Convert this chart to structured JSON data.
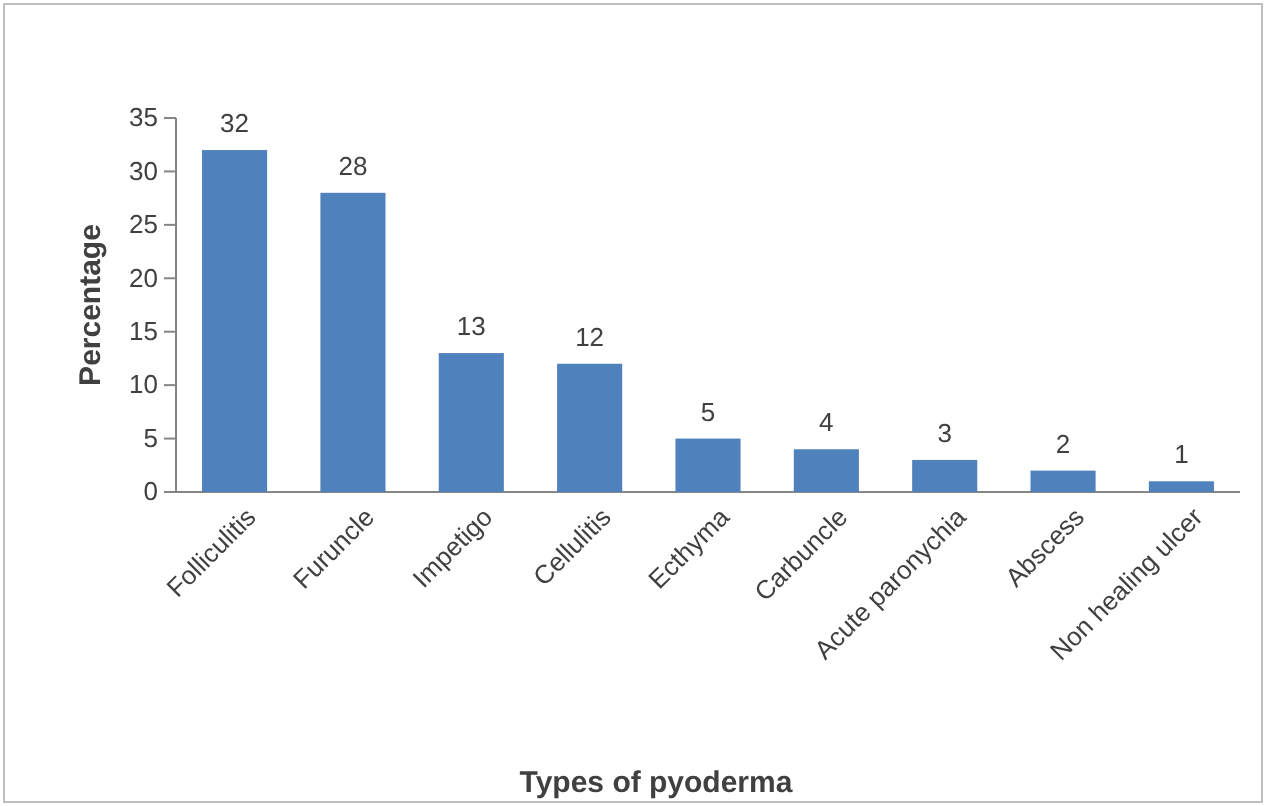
{
  "chart_data": {
    "type": "bar",
    "categories": [
      "Folliculitis",
      "Furuncle",
      "Impetigo",
      "Cellulitis",
      "Ecthyma",
      "Carbuncle",
      "Acute paronychia",
      "Abscess",
      "Non healing ulcer"
    ],
    "values": [
      32,
      28,
      13,
      12,
      5,
      4,
      3,
      2,
      1
    ],
    "color": "#4f81bd",
    "xlabel": "Types of pyoderma",
    "ylabel": "Percentage",
    "ylim": [
      0,
      35
    ],
    "yticks": [
      0,
      5,
      10,
      15,
      20,
      25,
      30,
      35
    ],
    "data_labels": true
  }
}
